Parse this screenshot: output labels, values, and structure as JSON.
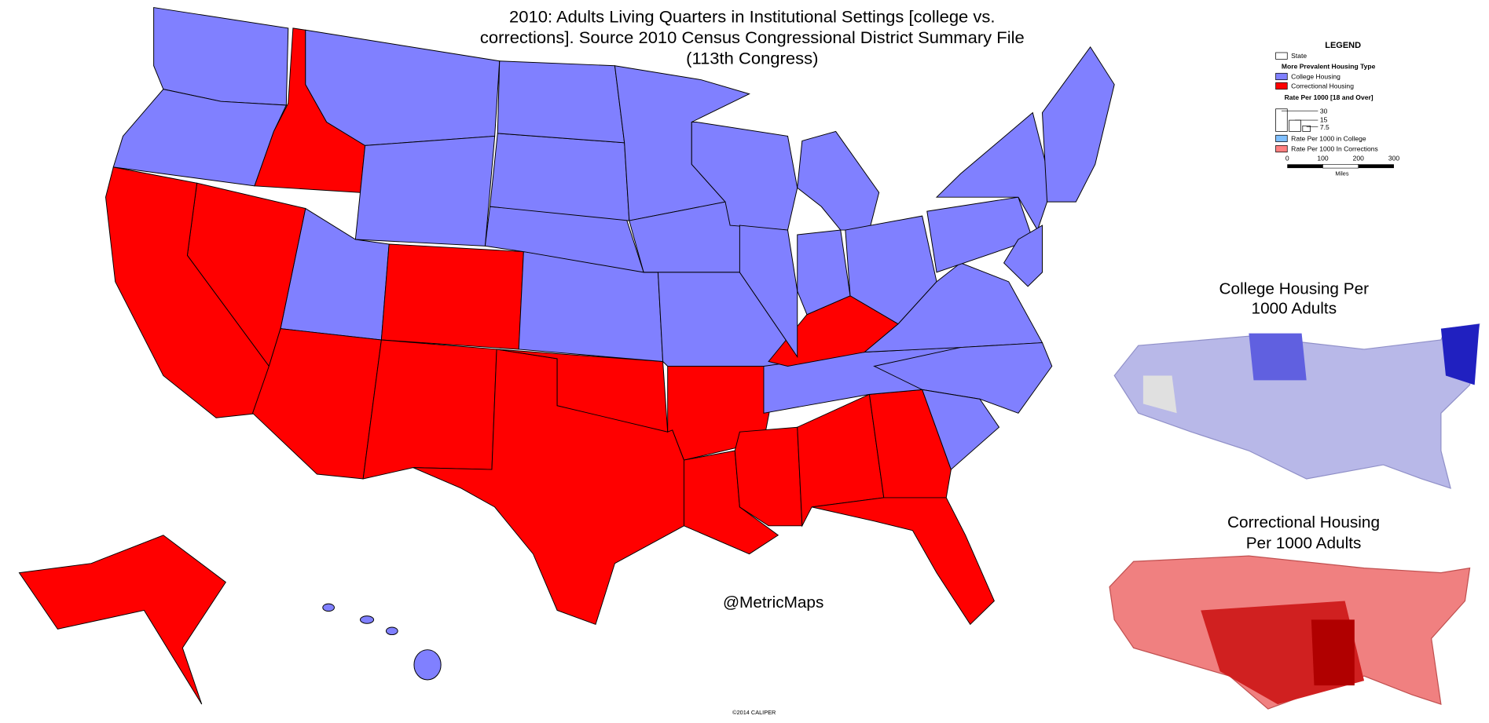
{
  "title_lines": [
    "2010: Adults Living Quarters in Institutional Settings [college vs.",
    "corrections].  Source 2010 Census Congressional District Summary File",
    "(113th Congress)"
  ],
  "legend": {
    "heading": "LEGEND",
    "state": "State",
    "type_heading": "More Prevalent Housing Type",
    "college": "College Housing",
    "corrections": "Correctional Housing",
    "rate_heading": "Rate Per 1000 [18 and Over]",
    "sizes": [
      "30",
      "15",
      "7.5"
    ],
    "rate_college": "Rate Per 1000 in College",
    "rate_corrections": "Rate Per 1000 In Corrections",
    "scale": [
      "0",
      "100",
      "200",
      "300"
    ],
    "scale_unit": "Miles"
  },
  "inset_college": [
    "College Housing Per",
    "1000 Adults"
  ],
  "inset_corrections": [
    "Correctional Housing",
    "Per 1000 Adults"
  ],
  "credit": "@MetricMaps",
  "copyright": "©2014 CALIPER"
}
